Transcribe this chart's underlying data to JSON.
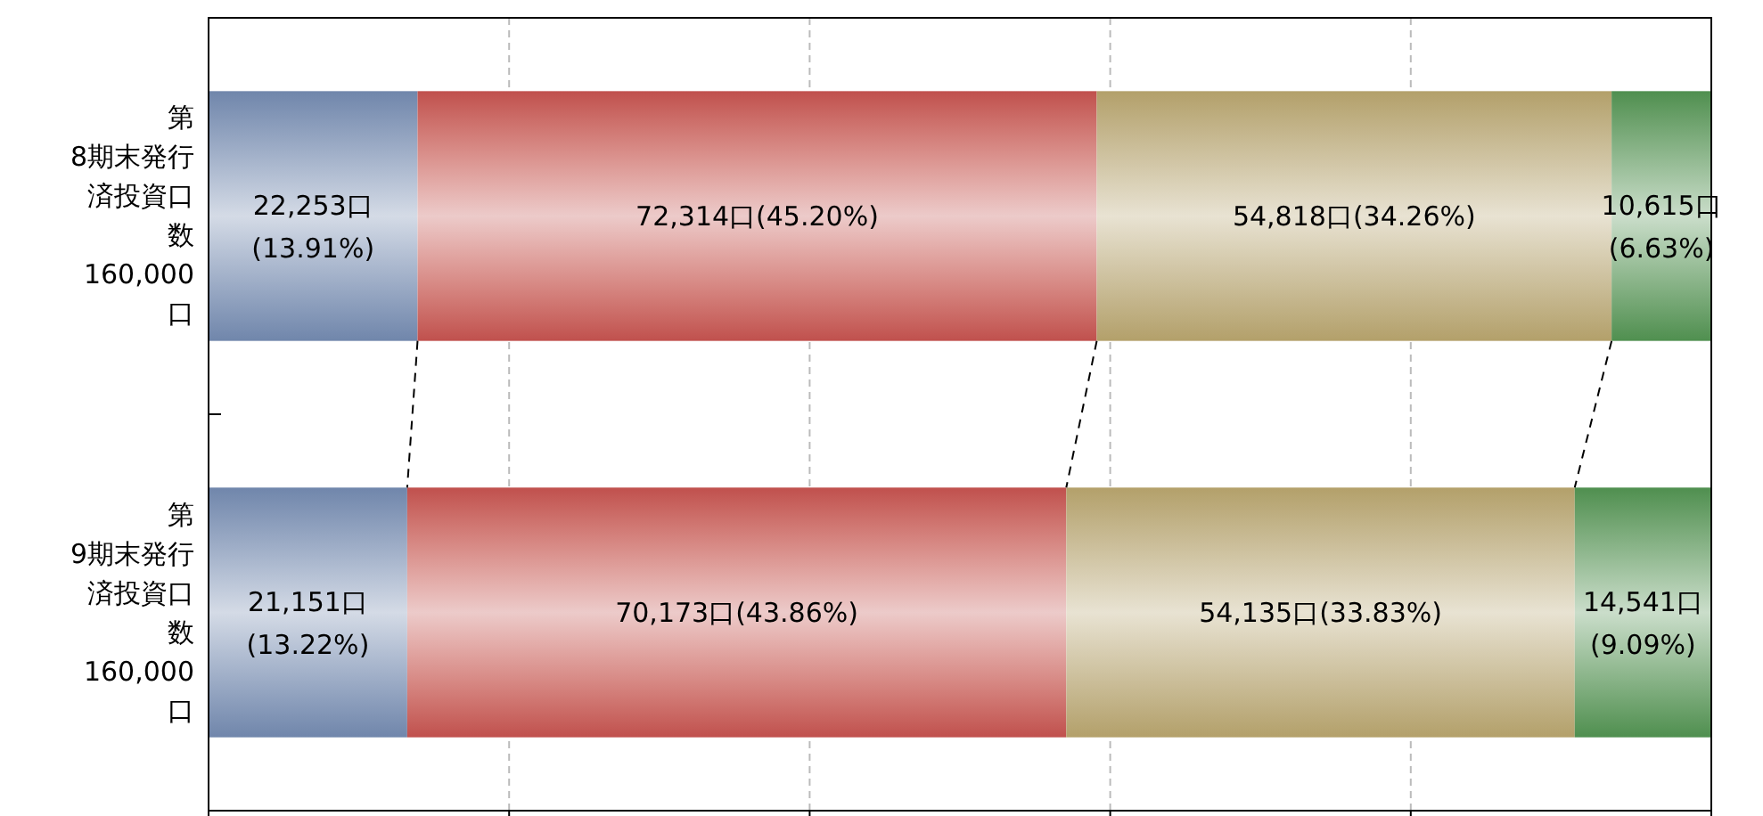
{
  "chart_data": {
    "type": "bar",
    "orientation": "horizontal",
    "stacked": true,
    "categories": [
      "第8期末発行済投資口数160,000口",
      "第9期末発行済投資口数160,000口"
    ],
    "series": [
      {
        "color": "#7086ab",
        "values": [
          22253,
          21151
        ],
        "value_labels": [
          "22,253口(13.91%)",
          "21,151口(13.22%)"
        ]
      },
      {
        "color": "#c0504d",
        "values": [
          72314,
          70173
        ],
        "value_labels": [
          "72,314口(45.20%)",
          "70,173口(43.86%)"
        ]
      },
      {
        "color": "#b3a06a",
        "values": [
          54818,
          54135
        ],
        "value_labels": [
          "54,818口(34.26%)",
          "54,135口(33.83%)"
        ]
      },
      {
        "color": "#4f8f4f",
        "values": [
          10615,
          14541
        ],
        "value_labels": [
          "10,615口(6.63%)",
          "14,541口(9.09%)"
        ]
      }
    ],
    "xlim": [
      0,
      160000
    ],
    "xticks": [
      {
        "value": 0,
        "label": null
      },
      {
        "value": 32000,
        "label": null
      },
      {
        "value": 64000,
        "label": null
      },
      {
        "value": 96000,
        "label": null
      },
      {
        "value": 128000,
        "label": null
      },
      {
        "value": 160000,
        "label": null
      }
    ],
    "grid": "x",
    "tick_labels": "y"
  }
}
